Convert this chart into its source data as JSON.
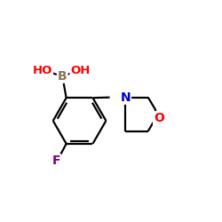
{
  "background": "#ffffff",
  "bond_color": "#000000",
  "B_color": "#8b7355",
  "O_color": "#ff0000",
  "N_color": "#0000cc",
  "F_color": "#800080",
  "figsize": [
    2.5,
    2.5
  ],
  "dpi": 100,
  "xlim": [
    0,
    10
  ],
  "ylim": [
    0,
    10
  ]
}
